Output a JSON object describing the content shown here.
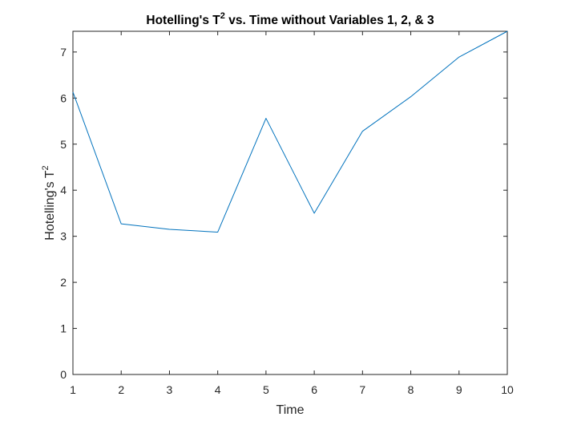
{
  "chart_data": {
    "type": "line",
    "title": {
      "text": "Hotelling's T",
      "sup": "2",
      "rest": " vs. Time without Variables 1, 2, & 3"
    },
    "xlabel": "Time",
    "ylabel": {
      "text": "Hotelling's T",
      "sup": "2"
    },
    "xlim": [
      1,
      10
    ],
    "ylim": [
      0,
      7.45
    ],
    "xticks": [
      1,
      2,
      3,
      4,
      5,
      6,
      7,
      8,
      9,
      10
    ],
    "yticks": [
      0,
      1,
      2,
      3,
      4,
      5,
      6,
      7
    ],
    "grid": false,
    "box": true,
    "series": [
      {
        "color": "#0072BD",
        "x": [
          1,
          2,
          3,
          4,
          5,
          6,
          7,
          8,
          9,
          10
        ],
        "y": [
          6.13,
          3.27,
          3.15,
          3.09,
          5.56,
          3.5,
          5.28,
          6.03,
          6.89,
          7.45
        ]
      }
    ]
  }
}
